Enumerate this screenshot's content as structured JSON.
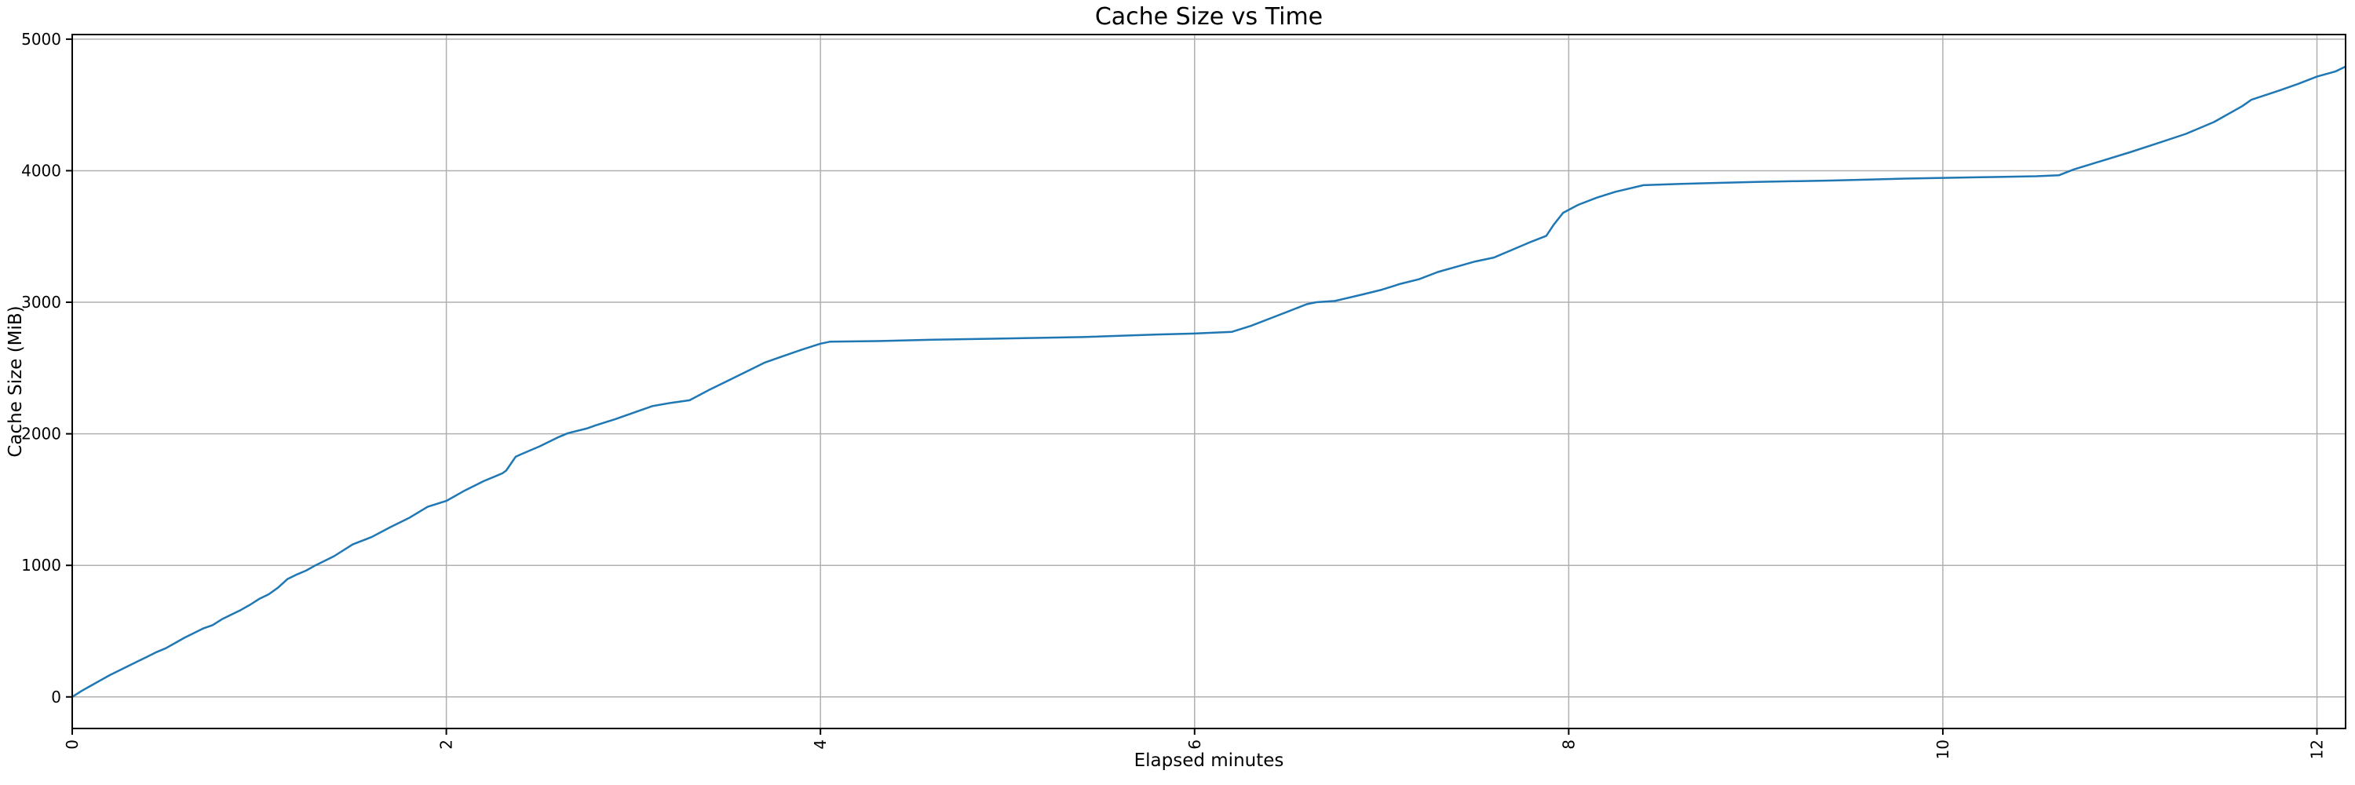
{
  "title": "Cache Size vs Time",
  "chart_data": {
    "type": "line",
    "title": "Cache Size vs Time",
    "xlabel": "Elapsed minutes",
    "ylabel": "Cache Size (MiB)",
    "x_ticks": [
      0,
      2,
      4,
      6,
      8,
      10,
      12
    ],
    "y_ticks": [
      0,
      1000,
      2000,
      3000,
      4000,
      5000
    ],
    "xlim": [
      0,
      12.153
    ],
    "ylim": [
      -240,
      5035
    ],
    "grid": true,
    "grid_color": "#b0b0b0",
    "spine_color": "#000000",
    "line_color": "#1f77b4",
    "legend": "none",
    "series": [
      {
        "name": "cache-size",
        "x": [
          0,
          0.05,
          0.1,
          0.15,
          0.2,
          0.25,
          0.3,
          0.35,
          0.4,
          0.45,
          0.5,
          0.55,
          0.6,
          0.65,
          0.7,
          0.75,
          0.8,
          0.85,
          0.9,
          0.95,
          1.0,
          1.05,
          1.1,
          1.15,
          1.2,
          1.25,
          1.3,
          1.4,
          1.5,
          1.6,
          1.7,
          1.8,
          1.9,
          2.0,
          2.1,
          2.2,
          2.3,
          2.32,
          2.37,
          2.4,
          2.5,
          2.6,
          2.65,
          2.75,
          2.8,
          2.9,
          3.0,
          3.1,
          3.2,
          3.3,
          3.4,
          3.5,
          3.6,
          3.7,
          3.8,
          3.9,
          4.0,
          4.05,
          4.3,
          4.6,
          5.0,
          5.4,
          5.8,
          6.0,
          6.2,
          6.3,
          6.4,
          6.5,
          6.6,
          6.65,
          6.75,
          6.9,
          7.0,
          7.1,
          7.2,
          7.3,
          7.4,
          7.5,
          7.6,
          7.7,
          7.8,
          7.88,
          7.92,
          7.97,
          8.05,
          8.15,
          8.25,
          8.4,
          8.6,
          9.0,
          9.4,
          9.8,
          10.2,
          10.5,
          10.62,
          10.7,
          10.85,
          11.0,
          11.15,
          11.3,
          11.45,
          11.6,
          11.65,
          11.8,
          11.9,
          12.0,
          12.1,
          12.15
        ],
        "y": [
          0,
          45,
          85,
          125,
          165,
          200,
          235,
          270,
          305,
          340,
          370,
          410,
          450,
          485,
          520,
          545,
          590,
          625,
          660,
          700,
          745,
          780,
          830,
          895,
          930,
          960,
          1000,
          1070,
          1160,
          1215,
          1290,
          1360,
          1445,
          1490,
          1570,
          1640,
          1700,
          1720,
          1825,
          1845,
          1905,
          1975,
          2005,
          2040,
          2065,
          2110,
          2160,
          2210,
          2235,
          2255,
          2330,
          2400,
          2470,
          2540,
          2590,
          2640,
          2685,
          2700,
          2705,
          2715,
          2725,
          2735,
          2755,
          2762,
          2775,
          2820,
          2875,
          2930,
          2985,
          3000,
          3010,
          3060,
          3095,
          3140,
          3175,
          3230,
          3270,
          3310,
          3340,
          3400,
          3460,
          3505,
          3590,
          3680,
          3740,
          3795,
          3840,
          3890,
          3900,
          3915,
          3925,
          3940,
          3950,
          3958,
          3965,
          4010,
          4075,
          4140,
          4210,
          4280,
          4370,
          4490,
          4540,
          4610,
          4660,
          4715,
          4755,
          4790
        ]
      }
    ]
  }
}
